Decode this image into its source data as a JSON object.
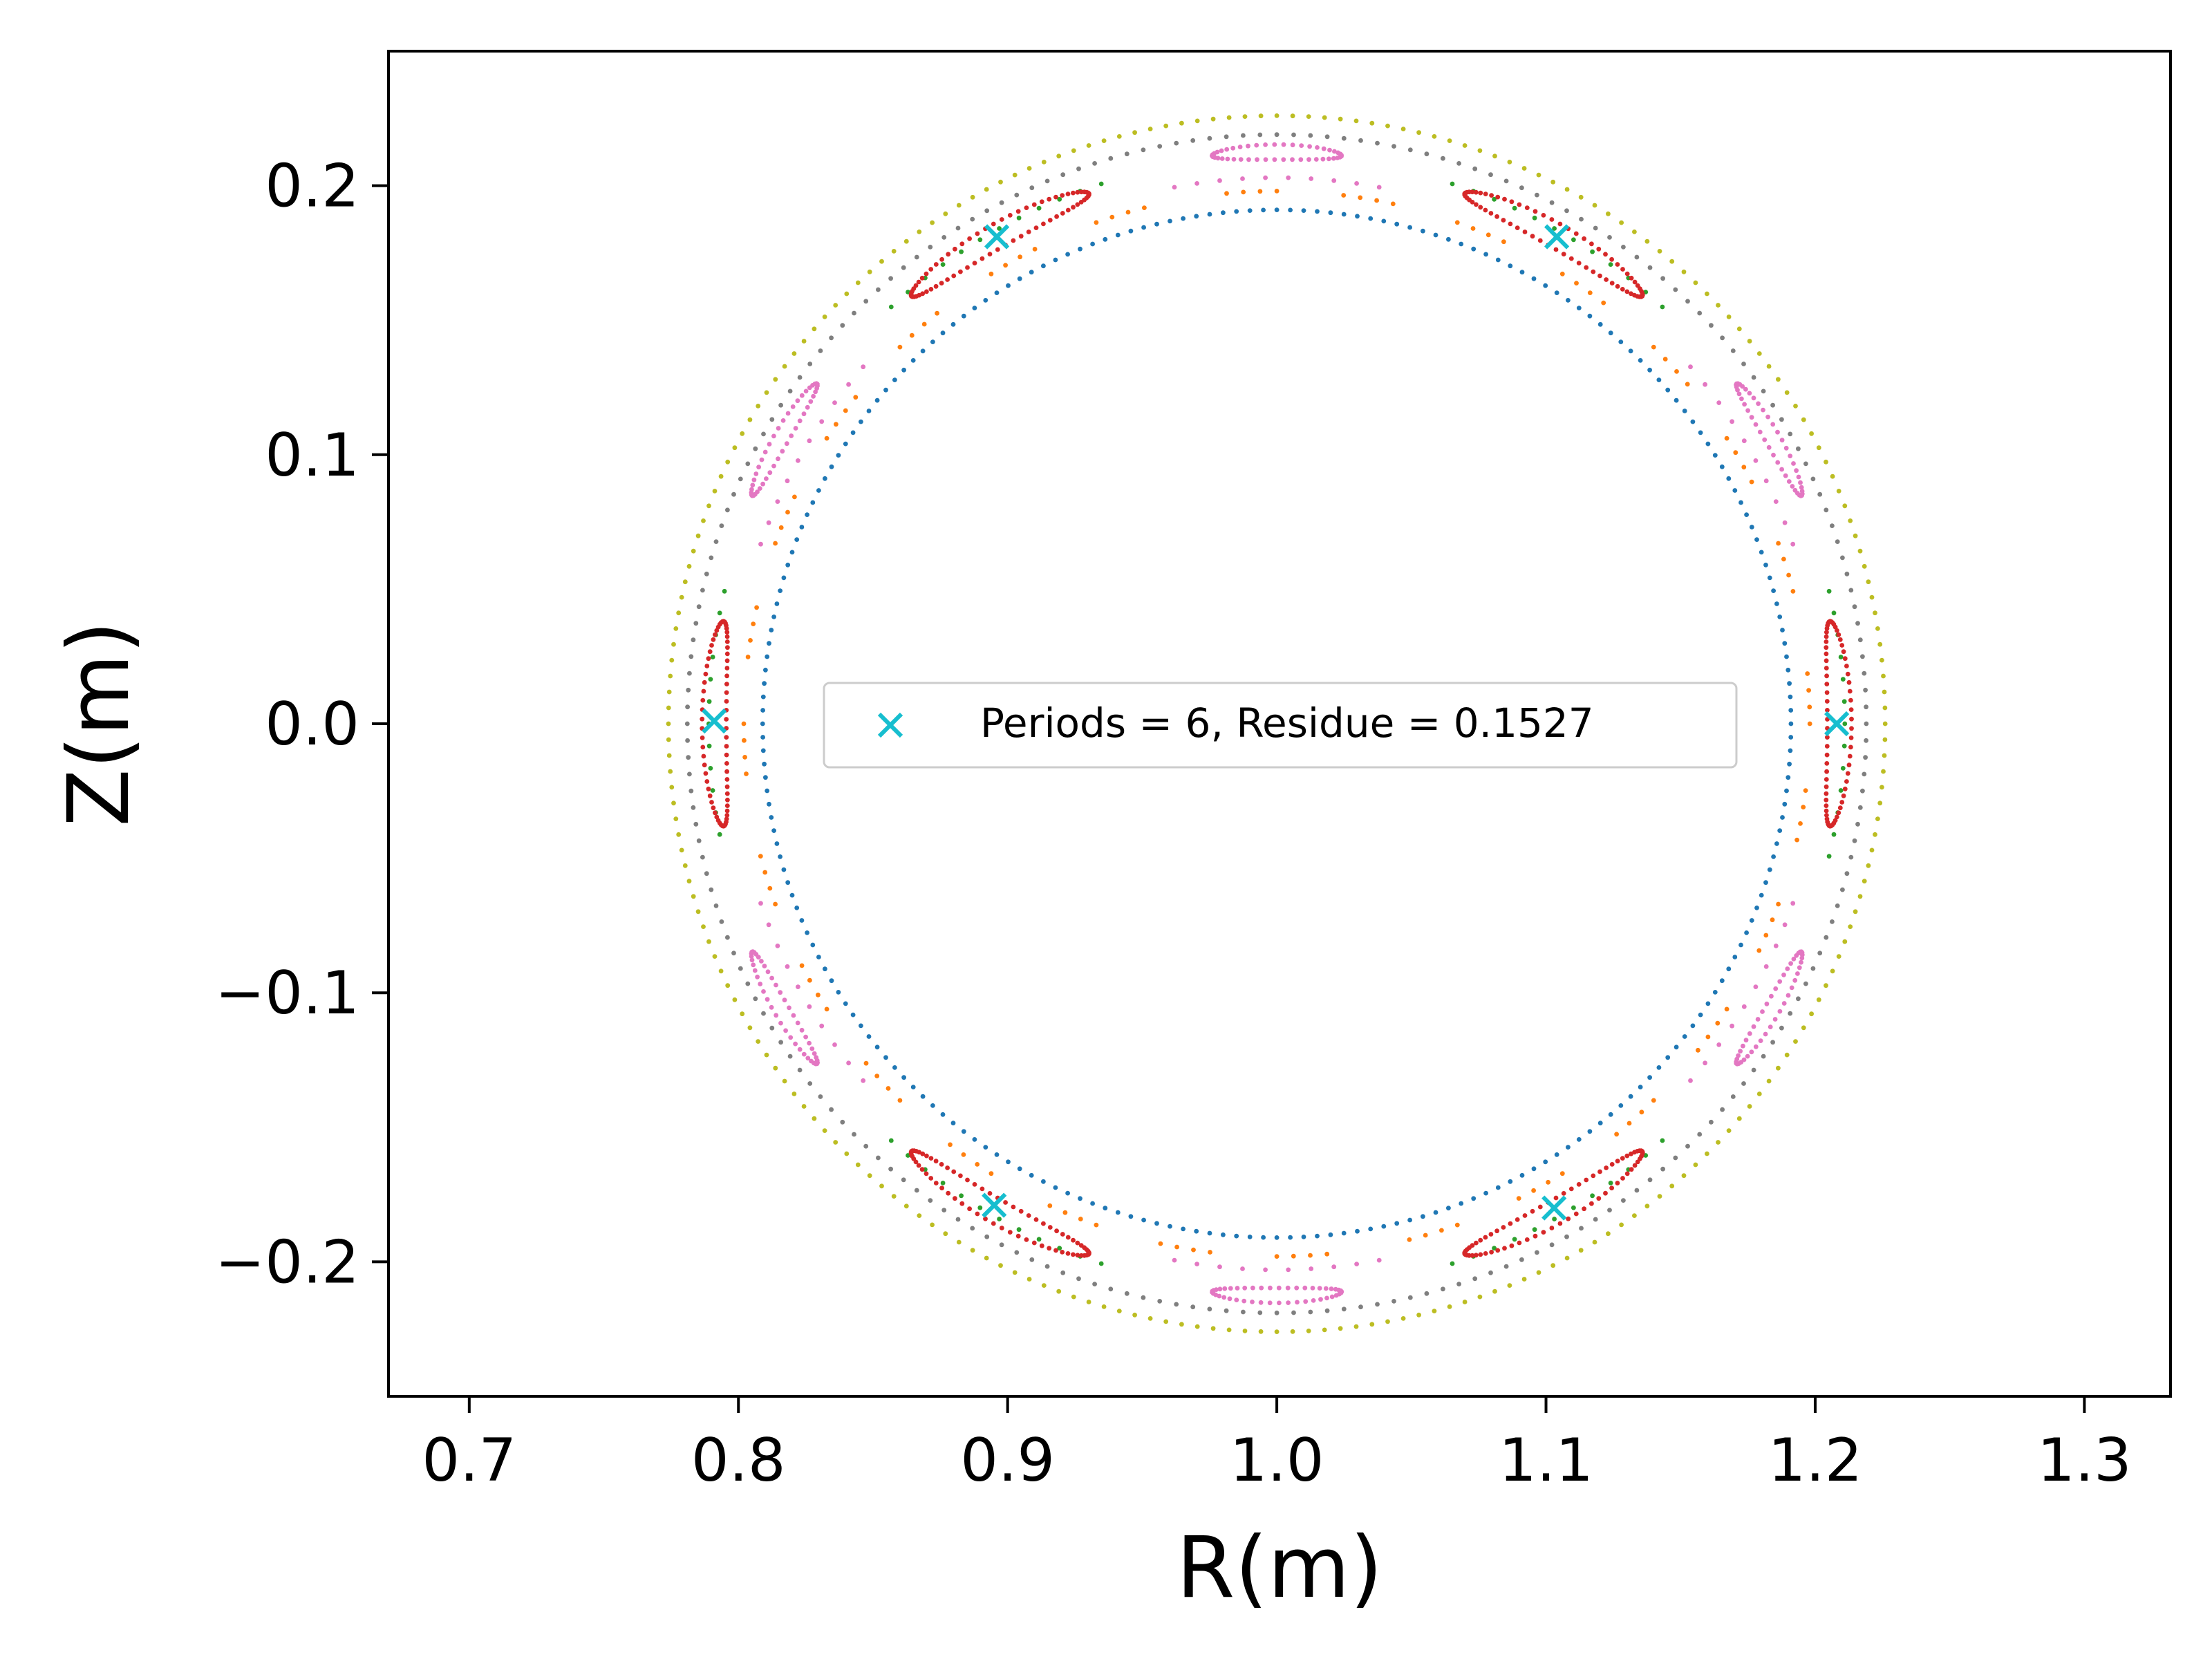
{
  "chart_data": {
    "type": "scatter",
    "title": "",
    "xlabel": "R(m)",
    "ylabel": "Z(m)",
    "xlim": [
      0.67,
      1.332
    ],
    "ylim": [
      -0.25,
      0.25
    ],
    "x_ticks": [
      0.7,
      0.8,
      0.9,
      1.0,
      1.1,
      1.2,
      1.3
    ],
    "x_tick_labels": [
      "0.7",
      "0.8",
      "0.9",
      "1.0",
      "1.1",
      "1.2",
      "1.3"
    ],
    "y_ticks": [
      -0.2,
      -0.1,
      0.0,
      0.1,
      0.2
    ],
    "y_tick_labels": [
      "−0.2",
      "−0.1",
      "0.0",
      "0.1",
      "0.2"
    ],
    "grid": false,
    "legend": {
      "placement": "center",
      "entries": [
        {
          "label": "Periods = 6, Residue = 0.1527",
          "marker": "x",
          "color": "#17becf"
        }
      ]
    },
    "center": {
      "R": 1.0,
      "Z": 0.0
    },
    "series": [
      {
        "kind": "circle",
        "radius": 0.191,
        "points": 240,
        "color": "#1f77b4"
      },
      {
        "kind": "circle",
        "radius": 0.198,
        "points": 200,
        "dash_fraction": 0.55,
        "dash_count": 28,
        "color": "#ff7f0e"
      },
      {
        "kind": "circle",
        "radius": 0.211,
        "points": 160,
        "phase_deg": 30,
        "arc_fraction": 0.45,
        "arc_count": 6,
        "color": "#2ca02c"
      },
      {
        "kind": "islands",
        "radius": 0.209,
        "count": 6,
        "phase_deg": 0,
        "half_width_deg": 10.5,
        "radial_half": 0.0045,
        "points_per_island": 70,
        "color": "#d62728"
      },
      {
        "kind": "islands",
        "radius": 0.2125,
        "count": 6,
        "phase_deg": 30,
        "half_width_deg": 6.5,
        "radial_half": 0.0028,
        "points_per_island": 45,
        "color": "#e377c2"
      },
      {
        "kind": "circle",
        "radius": 0.203,
        "points": 150,
        "phase_deg": 0,
        "arc_fraction": 0.4,
        "arc_count": 6,
        "color": "#e377c2"
      },
      {
        "kind": "circle",
        "radius": 0.219,
        "points": 220,
        "color": "#7f7f7f"
      },
      {
        "kind": "circle",
        "radius": 0.226,
        "points": 240,
        "color": "#bcbd22"
      }
    ],
    "x_points": {
      "color": "#17becf",
      "marker": "x",
      "points": [
        {
          "R": 1.208,
          "Z": 0.0
        },
        {
          "R": 1.104,
          "Z": 0.181
        },
        {
          "R": 0.896,
          "Z": 0.181
        },
        {
          "R": 0.791,
          "Z": 0.001
        },
        {
          "R": 0.895,
          "Z": -0.179
        },
        {
          "R": 1.103,
          "Z": -0.18
        }
      ]
    }
  }
}
